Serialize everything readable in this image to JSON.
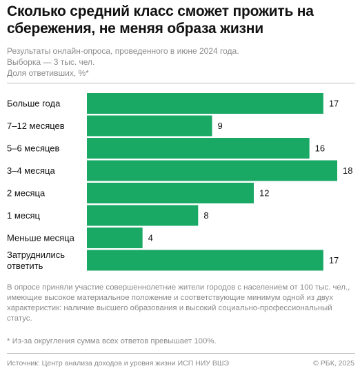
{
  "chart_data": {
    "type": "bar",
    "orientation": "horizontal",
    "title": "Сколько средний класс сможет прожить на сбережения, не меняя образа жизни",
    "subtitle_lines": [
      "Результаты онлайн-опроса, проведенного в июне 2024 года.",
      "Выборка — 3 тыс. чел.",
      "Доля ответивших, %*"
    ],
    "categories": [
      [
        "Больше года"
      ],
      [
        "7–12 месяцев"
      ],
      [
        "5–6 месяцев"
      ],
      [
        "3–4 месяца"
      ],
      [
        "2 месяца"
      ],
      [
        "1 месяц"
      ],
      [
        "Меньше месяца"
      ],
      [
        "Затруднились",
        "ответить"
      ]
    ],
    "values": [
      17,
      9,
      16,
      18,
      12,
      8,
      4,
      17
    ],
    "value_labels": [
      "17",
      "9",
      "16",
      "18",
      "12",
      "8",
      "4",
      "17"
    ],
    "xlim": [
      0,
      18
    ],
    "bar_color": "#1aa865",
    "grid": false,
    "legend": "none"
  },
  "note": "В опросе приняли участие совершеннолетние жители городов с населением от 100 тыс. чел., имеющие высокое материальное положение и соответствующие минимум одной из двух характеристик: наличие высшего образования и высокий социально-профессиональный статус.",
  "footnote": "* Из-за округления сумма всех ответов превышает 100%.",
  "source": "Источник: Центр анализа доходов и уровня жизни ИСП НИУ ВШЭ",
  "copyright": "© РБК, 2025"
}
